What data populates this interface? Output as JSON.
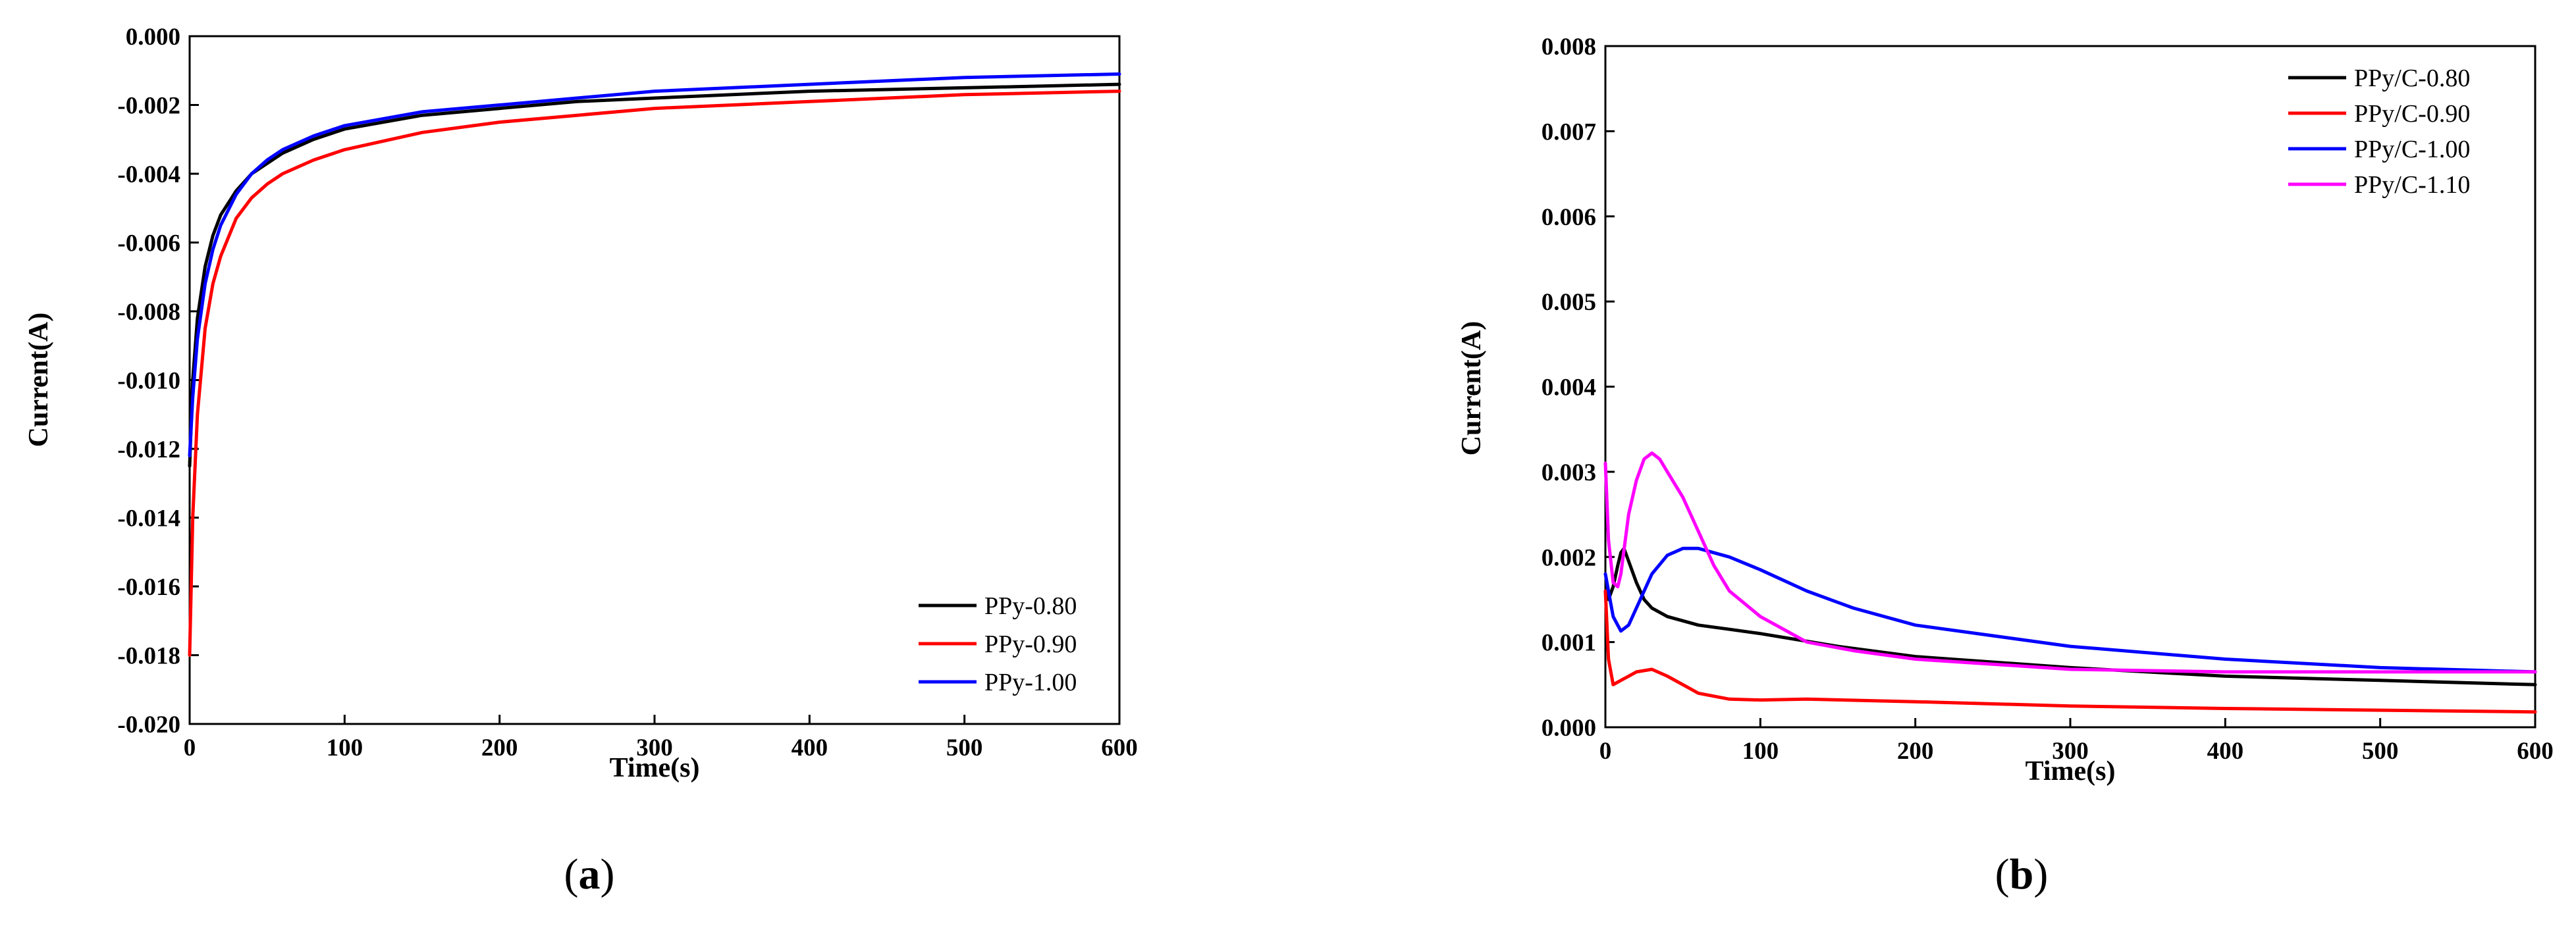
{
  "chart_data": [
    {
      "type": "line",
      "panel": "a",
      "xlabel": "Time(s)",
      "ylabel": "Current(A)",
      "xlim": [
        0,
        600
      ],
      "ylim": [
        -0.02,
        0.0
      ],
      "xticks": [
        "0",
        "100",
        "200",
        "300",
        "400",
        "500",
        "600"
      ],
      "yticks": [
        "0.000",
        "-0.002",
        "-0.004",
        "-0.006",
        "-0.008",
        "-0.010",
        "-0.012",
        "-0.014",
        "-0.016",
        "-0.018",
        "-0.020"
      ],
      "legend_position": "bottom-right",
      "series": [
        {
          "name": "PPy-0.80",
          "color": "#000000",
          "x": [
            0,
            2,
            5,
            10,
            15,
            20,
            30,
            40,
            50,
            60,
            80,
            100,
            150,
            200,
            250,
            300,
            400,
            500,
            600
          ],
          "y": [
            -0.0125,
            -0.01,
            -0.0082,
            -0.0067,
            -0.0058,
            -0.0052,
            -0.0045,
            -0.004,
            -0.0037,
            -0.0034,
            -0.003,
            -0.0027,
            -0.0023,
            -0.0021,
            -0.0019,
            -0.0018,
            -0.0016,
            -0.0015,
            -0.0014
          ]
        },
        {
          "name": "PPy-0.90",
          "color": "#ff0000",
          "x": [
            0,
            2,
            5,
            10,
            15,
            20,
            30,
            40,
            50,
            60,
            80,
            100,
            150,
            200,
            250,
            300,
            400,
            500,
            600
          ],
          "y": [
            -0.018,
            -0.014,
            -0.011,
            -0.0085,
            -0.0072,
            -0.0064,
            -0.0053,
            -0.0047,
            -0.0043,
            -0.004,
            -0.0036,
            -0.0033,
            -0.0028,
            -0.0025,
            -0.0023,
            -0.0021,
            -0.0019,
            -0.0017,
            -0.0016
          ]
        },
        {
          "name": "PPy-1.00",
          "color": "#0000ff",
          "x": [
            0,
            2,
            5,
            10,
            15,
            20,
            30,
            40,
            50,
            60,
            80,
            100,
            150,
            200,
            250,
            300,
            400,
            500,
            600
          ],
          "y": [
            -0.0122,
            -0.0105,
            -0.0088,
            -0.0072,
            -0.0062,
            -0.0055,
            -0.0046,
            -0.004,
            -0.0036,
            -0.0033,
            -0.0029,
            -0.0026,
            -0.0022,
            -0.002,
            -0.0018,
            -0.0016,
            -0.0014,
            -0.0012,
            -0.0011
          ]
        }
      ]
    },
    {
      "type": "line",
      "panel": "b",
      "xlabel": "Time(s)",
      "ylabel": "Current(A)",
      "xlim": [
        0,
        600
      ],
      "ylim": [
        0.0,
        0.008
      ],
      "xticks": [
        "0",
        "100",
        "200",
        "300",
        "400",
        "500",
        "600"
      ],
      "yticks": [
        "0.000",
        "0.001",
        "0.002",
        "0.003",
        "0.004",
        "0.005",
        "0.006",
        "0.007",
        "0.008"
      ],
      "legend_position": "top-right",
      "series": [
        {
          "name": "PPy/C-0.80",
          "color": "#000000",
          "x": [
            0,
            2,
            5,
            8,
            10,
            12,
            15,
            20,
            25,
            30,
            40,
            50,
            60,
            80,
            100,
            150,
            200,
            300,
            400,
            500,
            600
          ],
          "y": [
            0.0016,
            0.0015,
            0.00165,
            0.0019,
            0.00205,
            0.0021,
            0.00195,
            0.0017,
            0.0015,
            0.0014,
            0.0013,
            0.00125,
            0.0012,
            0.00115,
            0.0011,
            0.00095,
            0.00083,
            0.0007,
            0.0006,
            0.00055,
            0.0005
          ]
        },
        {
          "name": "PPy/C-0.90",
          "color": "#ff0000",
          "x": [
            0,
            2,
            5,
            10,
            15,
            20,
            30,
            40,
            50,
            60,
            80,
            100,
            130,
            200,
            300,
            400,
            500,
            600
          ],
          "y": [
            0.0016,
            0.0008,
            0.0005,
            0.00055,
            0.0006,
            0.00065,
            0.00068,
            0.0006,
            0.0005,
            0.0004,
            0.00033,
            0.00032,
            0.00033,
            0.0003,
            0.00025,
            0.00022,
            0.0002,
            0.00018
          ]
        },
        {
          "name": "PPy/C-1.00",
          "color": "#0000ff",
          "x": [
            0,
            2,
            5,
            10,
            15,
            20,
            30,
            40,
            50,
            60,
            70,
            80,
            100,
            130,
            160,
            200,
            300,
            400,
            500,
            600
          ],
          "y": [
            0.0018,
            0.0016,
            0.0013,
            0.00113,
            0.0012,
            0.0014,
            0.0018,
            0.00202,
            0.0021,
            0.0021,
            0.00205,
            0.002,
            0.00185,
            0.0016,
            0.0014,
            0.0012,
            0.00095,
            0.0008,
            0.0007,
            0.00065
          ]
        },
        {
          "name": "PPy/C-1.10",
          "color": "#ff00ff",
          "x": [
            0,
            2,
            5,
            8,
            10,
            15,
            20,
            25,
            30,
            35,
            40,
            50,
            60,
            70,
            80,
            100,
            130,
            160,
            200,
            300,
            400,
            500,
            600
          ],
          "y": [
            0.0031,
            0.0022,
            0.0017,
            0.00165,
            0.0018,
            0.0025,
            0.0029,
            0.00315,
            0.00322,
            0.00315,
            0.003,
            0.0027,
            0.0023,
            0.0019,
            0.0016,
            0.0013,
            0.001,
            0.0009,
            0.0008,
            0.00068,
            0.00065,
            0.00065,
            0.00065
          ]
        }
      ]
    }
  ],
  "panel_labels": {
    "a": {
      "open": "(",
      "letter": "a",
      "close": ")"
    },
    "b": {
      "open": "(",
      "letter": "b",
      "close": ")"
    }
  }
}
